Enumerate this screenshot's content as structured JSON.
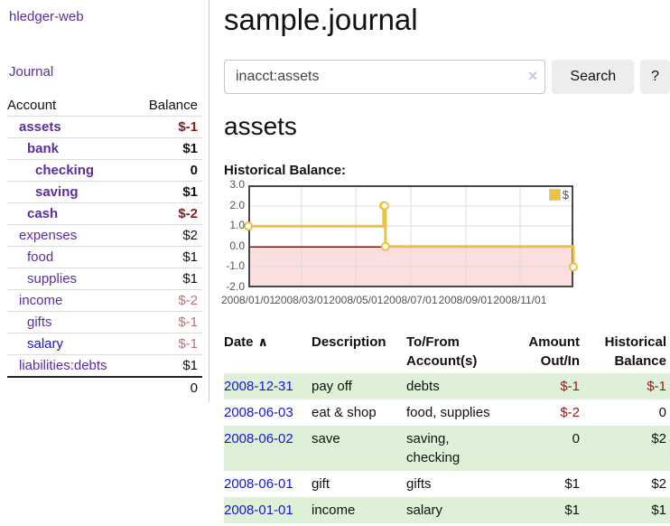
{
  "app": {
    "brand": "hledger-web"
  },
  "sidebar": {
    "journal_link": "Journal",
    "accounts": {
      "header_account": "Account",
      "header_balance": "Balance",
      "rows": [
        {
          "account": "assets",
          "depth": 1,
          "bold": true,
          "balance": "$-1"
        },
        {
          "account": "bank",
          "depth": 2,
          "bold": true,
          "balance": "$1"
        },
        {
          "account": "checking",
          "depth": 3,
          "bold": true,
          "balance": "0"
        },
        {
          "account": "saving",
          "depth": 3,
          "bold": true,
          "balance": "$1"
        },
        {
          "account": "cash",
          "depth": 2,
          "bold": true,
          "balance": "$-2"
        },
        {
          "account": "expenses",
          "depth": 1,
          "bold": false,
          "balance": "$2"
        },
        {
          "account": "food",
          "depth": 2,
          "bold": false,
          "balance": "$1"
        },
        {
          "account": "supplies",
          "depth": 2,
          "bold": false,
          "balance": "$1"
        },
        {
          "account": "income",
          "depth": 1,
          "bold": false,
          "balance": "$-2"
        },
        {
          "account": "gifts",
          "depth": 2,
          "bold": false,
          "balance": "$-1"
        },
        {
          "account": "salary",
          "depth": 2,
          "bold": false,
          "balance": "$-1",
          "link_state": "unvisited"
        },
        {
          "account": "liabilities:debts",
          "depth": 1,
          "bold": false,
          "balance": "$1"
        }
      ],
      "total": "0"
    }
  },
  "main": {
    "title": "sample.journal",
    "search": {
      "value": "inacct:assets",
      "clear_icon": "×",
      "search_button": "Search",
      "help_button": "?"
    },
    "account_heading": "assets",
    "register": {
      "headers": {
        "date": "Date",
        "sort_icon": "∧",
        "description": "Description",
        "accounts": "To/From Account(s)",
        "amount": "Amount Out/In",
        "balance": "Historical Balance"
      },
      "rows": [
        {
          "date": "2008-12-31",
          "description": "pay off",
          "accounts": "debts",
          "amount": "$-1",
          "balance": "$-1"
        },
        {
          "date": "2008-06-03",
          "description": "eat & shop",
          "accounts": "food, supplies",
          "amount": "$-2",
          "balance": "0"
        },
        {
          "date": "2008-06-02",
          "description": "save",
          "accounts": "saving, checking",
          "amount": "0",
          "balance": "$2"
        },
        {
          "date": "2008-06-01",
          "description": "gift",
          "accounts": "gifts",
          "amount": "$1",
          "balance": "$2"
        },
        {
          "date": "2008-01-01",
          "description": "income",
          "accounts": "salary",
          "amount": "$1",
          "balance": "$1"
        }
      ]
    }
  },
  "chart_data": {
    "type": "line",
    "title": "Historical Balance:",
    "step": true,
    "series": [
      {
        "name": "$",
        "color": "#edc240",
        "points": [
          [
            "2008-01-01",
            1
          ],
          [
            "2008-06-01",
            2
          ],
          [
            "2008-06-02",
            2
          ],
          [
            "2008-06-03",
            0
          ],
          [
            "2008-12-31",
            -1
          ]
        ]
      }
    ],
    "x_range": [
      "2008-01-01",
      "2008-12-31"
    ],
    "ylim": [
      -2,
      3
    ],
    "y_ticks": [
      3,
      2,
      1,
      0,
      -1,
      -2
    ],
    "x_ticks": [
      {
        "date": "2008-01-01",
        "label": "2008/01/01"
      },
      {
        "date": "2008-03-01",
        "label": "2008/03/01"
      },
      {
        "date": "2008-05-01",
        "label": "2008/05/01"
      },
      {
        "date": "2008-07-01",
        "label": "2008/07/01"
      },
      {
        "date": "2008-09-01",
        "label": "2008/09/01"
      },
      {
        "date": "2008-11-01",
        "label": "2008/11/01"
      }
    ],
    "legend": {
      "label": "$",
      "position": "top-right"
    },
    "grid": true,
    "colors": {
      "line": "#edc240",
      "marker_fill": "#ffffff",
      "negative_fill": "#fbdede",
      "zero_line": "#990000",
      "grid": "#dcdcdc",
      "border": "#474747",
      "tick_text": "#545454"
    }
  }
}
